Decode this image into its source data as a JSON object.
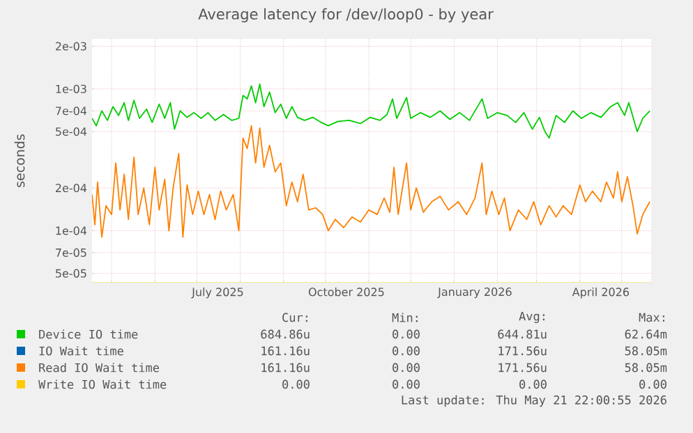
{
  "chart_data": {
    "type": "line",
    "title": "Average latency for /dev/loop0 - by year",
    "ylabel": "seconds",
    "log": "y",
    "grid": true,
    "legend": "bottom left",
    "xlim": [
      "2025-04-17",
      "2026-05-22"
    ],
    "ylim": [
      4.3e-05,
      0.00225
    ],
    "xticks": [
      {
        "value": "2025-05-01",
        "label": null
      },
      {
        "value": "2025-06-01",
        "label": null
      },
      {
        "value": "2025-07-01",
        "label": null
      },
      {
        "value": "2025-08-01",
        "label": null
      },
      {
        "value": "2025-09-01",
        "label": null
      },
      {
        "value": "2025-10-01",
        "label": null
      },
      {
        "value": "2025-11-01",
        "label": null
      },
      {
        "value": "2025-12-01",
        "label": null
      },
      {
        "value": "2026-01-01",
        "label": null
      },
      {
        "value": "2026-02-01",
        "label": null
      },
      {
        "value": "2026-03-01",
        "label": null
      },
      {
        "value": "2026-04-01",
        "label": null
      },
      {
        "value": "2026-05-01",
        "label": null
      },
      {
        "value": "2025-07-16",
        "label": "July 2025"
      },
      {
        "value": "2025-10-16",
        "label": "October 2025"
      },
      {
        "value": "2026-01-16",
        "label": "January 2026"
      },
      {
        "value": "2026-04-16",
        "label": "April 2026"
      }
    ],
    "yticks": [
      {
        "value": 5e-05,
        "label": "5e-05"
      },
      {
        "value": 7e-05,
        "label": "7e-05"
      },
      {
        "value": 0.0001,
        "label": "1e-04"
      },
      {
        "value": 0.0002,
        "label": "2e-04"
      },
      {
        "value": 0.0005,
        "label": "5e-04"
      },
      {
        "value": 0.0007,
        "label": "7e-04"
      },
      {
        "value": 0.001,
        "label": "1e-03"
      },
      {
        "value": 0.002,
        "label": "2e-03"
      }
    ],
    "series": [
      {
        "name": "Device IO time",
        "color": "#00cc00",
        "x": [
          "2025-04-17",
          "2025-04-20",
          "2025-04-24",
          "2025-04-28",
          "2025-05-02",
          "2025-05-06",
          "2025-05-10",
          "2025-05-13",
          "2025-05-17",
          "2025-05-21",
          "2025-05-26",
          "2025-05-30",
          "2025-06-04",
          "2025-06-08",
          "2025-06-12",
          "2025-06-15",
          "2025-06-19",
          "2025-06-24",
          "2025-06-29",
          "2025-07-04",
          "2025-07-09",
          "2025-07-14",
          "2025-07-20",
          "2025-07-26",
          "2025-07-31",
          "2025-08-03",
          "2025-08-06",
          "2025-08-09",
          "2025-08-12",
          "2025-08-15",
          "2025-08-18",
          "2025-08-22",
          "2025-08-26",
          "2025-08-30",
          "2025-09-03",
          "2025-09-07",
          "2025-09-11",
          "2025-09-16",
          "2025-09-22",
          "2025-09-28",
          "2025-10-03",
          "2025-10-10",
          "2025-10-18",
          "2025-10-26",
          "2025-11-02",
          "2025-11-09",
          "2025-11-14",
          "2025-11-18",
          "2025-11-21",
          "2025-11-28",
          "2025-12-01",
          "2025-12-08",
          "2025-12-15",
          "2025-12-22",
          "2025-12-29",
          "2026-01-05",
          "2026-01-12",
          "2026-01-21",
          "2026-01-25",
          "2026-02-01",
          "2026-02-08",
          "2026-02-14",
          "2026-02-20",
          "2026-02-26",
          "2026-03-03",
          "2026-03-07",
          "2026-03-10",
          "2026-03-15",
          "2026-03-21",
          "2026-03-27",
          "2026-04-02",
          "2026-04-09",
          "2026-04-16",
          "2026-04-23",
          "2026-04-28",
          "2026-05-03",
          "2026-05-06",
          "2026-05-12",
          "2026-05-16",
          "2026-05-21"
        ],
        "values": [
          0.00062,
          0.00055,
          0.0007,
          0.0006,
          0.00075,
          0.00065,
          0.0008,
          0.0006,
          0.00083,
          0.00062,
          0.00072,
          0.00058,
          0.00078,
          0.00062,
          0.0008,
          0.00052,
          0.0007,
          0.00063,
          0.00068,
          0.00062,
          0.00068,
          0.0006,
          0.00066,
          0.0006,
          0.00062,
          0.0009,
          0.00085,
          0.00105,
          0.0008,
          0.00108,
          0.00075,
          0.00095,
          0.00068,
          0.00078,
          0.00062,
          0.00075,
          0.00063,
          0.0006,
          0.00063,
          0.00058,
          0.00055,
          0.00059,
          0.0006,
          0.00057,
          0.00063,
          0.0006,
          0.00066,
          0.00085,
          0.00062,
          0.00087,
          0.00062,
          0.00068,
          0.00063,
          0.0007,
          0.00061,
          0.00068,
          0.0006,
          0.00085,
          0.00062,
          0.00068,
          0.00065,
          0.00058,
          0.00068,
          0.00052,
          0.00063,
          0.0005,
          0.00045,
          0.00065,
          0.00058,
          0.0007,
          0.00062,
          0.00068,
          0.00063,
          0.00075,
          0.0008,
          0.00065,
          0.0008,
          0.0005,
          0.00062,
          0.0007
        ]
      },
      {
        "name": "IO Wait time",
        "color": "#0066b3"
      },
      {
        "name": "Read IO Wait time",
        "color": "#ff8000",
        "x": [
          "2025-04-17",
          "2025-04-19",
          "2025-04-21",
          "2025-04-24",
          "2025-04-27",
          "2025-05-01",
          "2025-05-04",
          "2025-05-07",
          "2025-05-10",
          "2025-05-13",
          "2025-05-17",
          "2025-05-20",
          "2025-05-24",
          "2025-05-28",
          "2025-06-01",
          "2025-06-04",
          "2025-06-08",
          "2025-06-11",
          "2025-06-14",
          "2025-06-18",
          "2025-06-21",
          "2025-06-24",
          "2025-06-28",
          "2025-07-02",
          "2025-07-06",
          "2025-07-10",
          "2025-07-14",
          "2025-07-18",
          "2025-07-22",
          "2025-07-27",
          "2025-07-31",
          "2025-08-03",
          "2025-08-06",
          "2025-08-09",
          "2025-08-12",
          "2025-08-15",
          "2025-08-18",
          "2025-08-22",
          "2025-08-26",
          "2025-08-30",
          "2025-09-03",
          "2025-09-07",
          "2025-09-11",
          "2025-09-15",
          "2025-09-19",
          "2025-09-24",
          "2025-09-29",
          "2025-10-03",
          "2025-10-08",
          "2025-10-14",
          "2025-10-20",
          "2025-10-26",
          "2025-11-01",
          "2025-11-07",
          "2025-11-12",
          "2025-11-16",
          "2025-11-19",
          "2025-11-22",
          "2025-11-28",
          "2025-12-01",
          "2025-12-05",
          "2025-12-10",
          "2025-12-16",
          "2025-12-22",
          "2025-12-28",
          "2026-01-04",
          "2026-01-10",
          "2026-01-16",
          "2026-01-21",
          "2026-01-24",
          "2026-01-28",
          "2026-02-02",
          "2026-02-06",
          "2026-02-10",
          "2026-02-16",
          "2026-02-22",
          "2026-02-27",
          "2026-03-04",
          "2026-03-10",
          "2026-03-15",
          "2026-03-20",
          "2026-03-26",
          "2026-04-01",
          "2026-04-05",
          "2026-04-10",
          "2026-04-16",
          "2026-04-20",
          "2026-04-25",
          "2026-04-28",
          "2026-05-01",
          "2026-05-05",
          "2026-05-09",
          "2026-05-12",
          "2026-05-16",
          "2026-05-21"
        ],
        "values": [
          0.00018,
          0.00011,
          0.00022,
          9e-05,
          0.00015,
          0.00013,
          0.0003,
          0.00014,
          0.00025,
          0.00012,
          0.00033,
          0.00013,
          0.0002,
          0.00011,
          0.00028,
          0.00014,
          0.00023,
          0.0001,
          0.0002,
          0.00035,
          9e-05,
          0.00021,
          0.00013,
          0.00019,
          0.00013,
          0.00018,
          0.00012,
          0.00019,
          0.00014,
          0.00018,
          0.0001,
          0.00045,
          0.00038,
          0.00055,
          0.0003,
          0.00053,
          0.00028,
          0.0004,
          0.00026,
          0.0003,
          0.00015,
          0.00022,
          0.00016,
          0.00025,
          0.00014,
          0.000145,
          0.00013,
          0.0001,
          0.00012,
          0.000105,
          0.000125,
          0.000115,
          0.00014,
          0.00013,
          0.00017,
          0.000135,
          0.00028,
          0.00013,
          0.0003,
          0.00014,
          0.0002,
          0.000135,
          0.00016,
          0.000175,
          0.00014,
          0.00016,
          0.00013,
          0.00017,
          0.0003,
          0.00013,
          0.00019,
          0.00013,
          0.00017,
          0.0001,
          0.00014,
          0.00012,
          0.00016,
          0.00011,
          0.00015,
          0.000125,
          0.00015,
          0.00013,
          0.00021,
          0.00016,
          0.00019,
          0.00016,
          0.00022,
          0.00017,
          0.00026,
          0.00016,
          0.00024,
          0.00015,
          9.5e-05,
          0.00013,
          0.00016
        ]
      },
      {
        "name": "Write IO Wait time",
        "color": "#ffcc00"
      }
    ],
    "annotations": [
      "Cur:",
      "Min:",
      "Avg:",
      "Max:",
      "684.86u",
      "0.00",
      "644.81u",
      "62.64m",
      "161.16u",
      "0.00",
      "171.56u",
      "58.05m",
      "161.16u",
      "0.00",
      "171.56u",
      "58.05m",
      "0.00",
      "0.00",
      "0.00",
      "0.00",
      "Last update: Thu May 21 22:00:55 2026"
    ]
  }
}
